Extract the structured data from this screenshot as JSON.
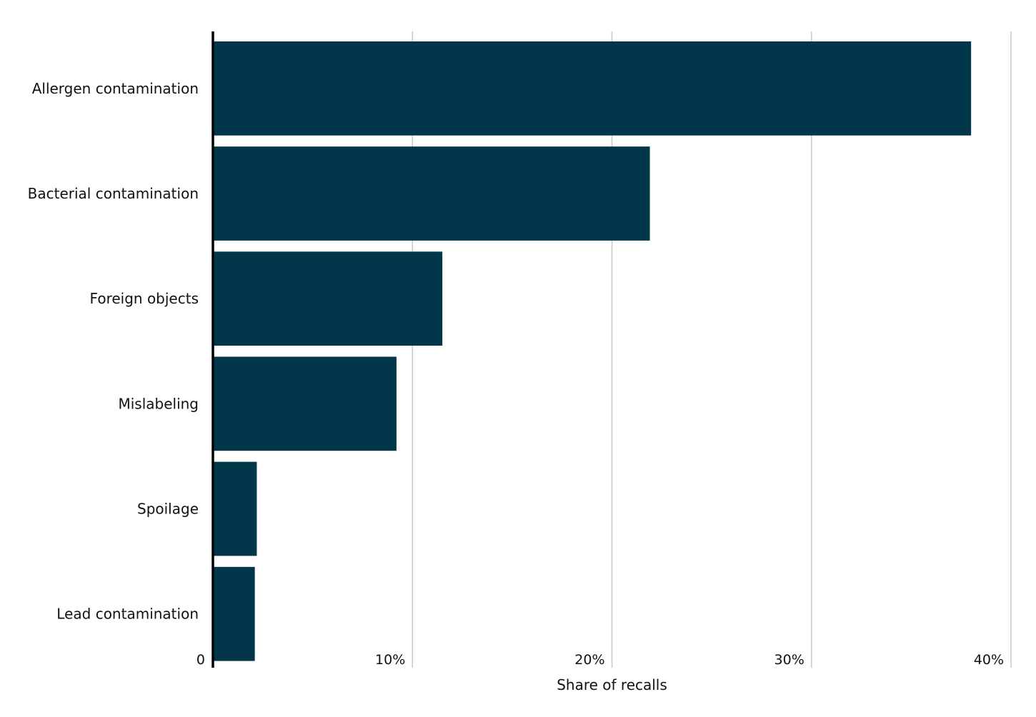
{
  "chart_data": {
    "type": "bar",
    "orientation": "horizontal",
    "title": "",
    "xlabel": "Share of recalls",
    "ylabel": "",
    "xlim": [
      0,
      40
    ],
    "x_ticks": [
      0,
      10,
      20,
      30,
      40
    ],
    "x_tick_labels": [
      "0",
      "10%",
      "20%",
      "30%",
      "40%"
    ],
    "grid": "vertical",
    "legend": "none",
    "categories": [
      "Allergen contamination",
      "Bacterial contamination",
      "Foreign objects",
      "Mislabeling",
      "Spoilage",
      "Lead contamination"
    ],
    "values": [
      38,
      21.9,
      11.5,
      9.2,
      2.2,
      2.1
    ],
    "bar_color": "#02364a",
    "grid_color": "#c8c8c8",
    "axis_color": "#000000"
  }
}
